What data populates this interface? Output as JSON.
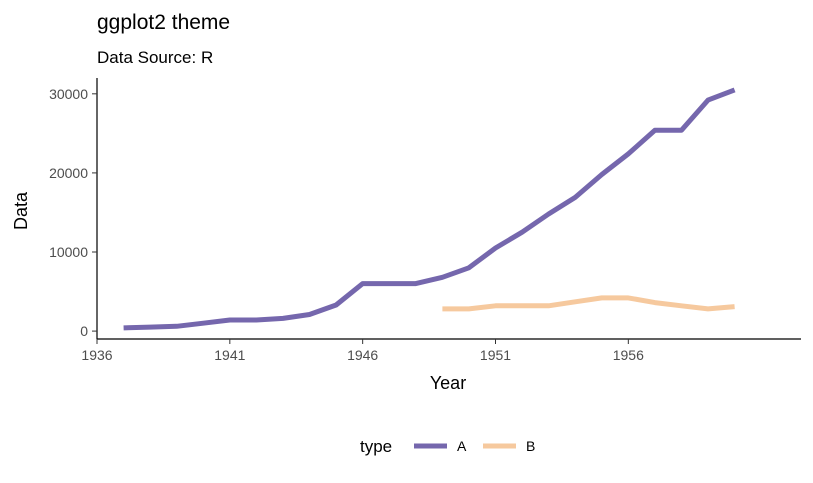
{
  "chart_data": {
    "type": "line",
    "title": "ggplot2 theme",
    "subtitle": "Data Source: R",
    "xlabel": "Year",
    "ylabel": "Data",
    "xlim": [
      1936,
      1962.5
    ],
    "ylim": [
      -1000,
      32000
    ],
    "xticks": [
      1936,
      1941,
      1946,
      1951,
      1956
    ],
    "yticks": [
      0,
      10000,
      20000,
      30000
    ],
    "grid": false,
    "legend": {
      "title": "type",
      "placement": "bottom"
    },
    "series": [
      {
        "name": "A",
        "color": "#7567ad",
        "x": [
          1937,
          1938,
          1939,
          1940,
          1941,
          1942,
          1943,
          1944,
          1945,
          1946,
          1947,
          1948,
          1949,
          1950,
          1951,
          1952,
          1953,
          1954,
          1955,
          1956,
          1957,
          1958,
          1959,
          1960
        ],
        "y": [
          400,
          500,
          600,
          1000,
          1400,
          1400,
          1600,
          2100,
          3300,
          6000,
          6000,
          6000,
          6800,
          8000,
          10500,
          12500,
          14800,
          16900,
          19800,
          22400,
          25400,
          25400,
          29200,
          30500
        ]
      },
      {
        "name": "B",
        "color": "#f6c99e",
        "x": [
          1949,
          1950,
          1951,
          1952,
          1953,
          1954,
          1955,
          1956,
          1957,
          1958,
          1959,
          1960
        ],
        "y": [
          2800,
          2800,
          3200,
          3200,
          3200,
          3700,
          4200,
          4200,
          3600,
          3200,
          2800,
          3100
        ]
      }
    ]
  }
}
